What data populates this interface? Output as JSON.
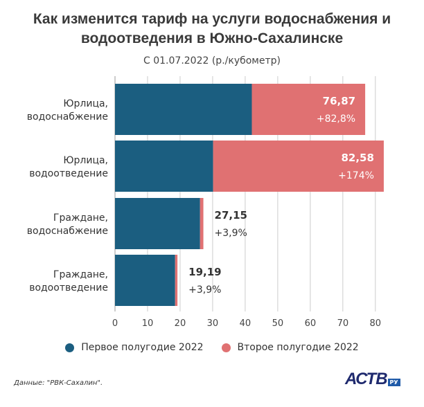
{
  "title": "Как изменится тариф на услуги водоснабжения и водоотведения в Южно-Сахалинске",
  "subtitle": "С 01.07.2022 (р./кубометр)",
  "source": "Данные: \"РВК-Сахалин\".",
  "logo": {
    "text": "АСТВ",
    "sub": "РУ"
  },
  "colors": {
    "first_half": "#1b5e80",
    "second_half": "#e07172",
    "grid": "#cccccc"
  },
  "chart_data": {
    "type": "bar",
    "orientation": "horizontal",
    "stacked": true,
    "categories": [
      [
        "Юрлица,",
        "водоснабжение"
      ],
      [
        "Юрлица,",
        "водоотведение"
      ],
      [
        "Граждане,",
        "водоснабжение"
      ],
      [
        "Граждане,",
        "водоотведение"
      ]
    ],
    "series": [
      {
        "name": "Первое полугодие 2022",
        "values": [
          42.04,
          30.14,
          26.13,
          18.47
        ]
      },
      {
        "name": "Второе полугодие 2022",
        "values": [
          34.83,
          52.44,
          1.02,
          0.72
        ]
      }
    ],
    "totals": [
      "76,87",
      "82,58",
      "27,15",
      "19,19"
    ],
    "changes": [
      "+82,8%",
      "+174%",
      "+3,9%",
      "+3,9%"
    ],
    "xlim": [
      0,
      86
    ],
    "xticks": [
      0,
      10,
      20,
      30,
      40,
      50,
      60,
      70,
      80
    ],
    "grid": true,
    "legend_position": "bottom"
  }
}
